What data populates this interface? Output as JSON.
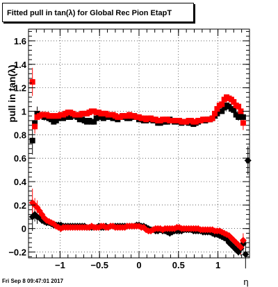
{
  "title": "Fitted pull in tan(λ) for Global Rec Pion EtapT",
  "date": "Fri Sep  8 09:47:01 2017",
  "colors": {
    "primary": "#000000",
    "secondary": "#ff0000"
  },
  "chart_data": {
    "type": "scatter",
    "title": "Fitted pull in tan(λ) for Global Rec Pion EtapT",
    "xlabel": "η",
    "ylabel": "pull in tan(λ)",
    "xlim": [
      -1.4,
      1.4
    ],
    "ylim": [
      -0.25,
      1.7
    ],
    "x_ticks": [
      -1,
      -0.5,
      0,
      0.5,
      1
    ],
    "x_tick_labels": [
      "−1",
      "−0.5",
      "0",
      "0.5",
      "1"
    ],
    "y_ticks": [
      -0.2,
      0,
      0.2,
      0.4,
      0.6,
      0.8,
      1,
      1.2,
      1.4,
      1.6
    ],
    "y_tick_labels": [
      "−0.2",
      "0",
      "0.2",
      "0.4",
      "0.6",
      "0.8",
      "1",
      "1.2",
      "1.4",
      "1.6"
    ],
    "grid": true,
    "series": [
      {
        "color": "#000000",
        "marker": "square",
        "x": [
          -1.35,
          -1.32,
          -1.29,
          -1.26,
          -1.23,
          -1.2,
          -1.17,
          -1.14,
          -1.11,
          -1.08,
          -1.05,
          -1.02,
          -0.99,
          -0.96,
          -0.93,
          -0.9,
          -0.87,
          -0.84,
          -0.81,
          -0.78,
          -0.75,
          -0.72,
          -0.69,
          -0.66,
          -0.63,
          -0.6,
          -0.57,
          -0.54,
          -0.51,
          -0.48,
          -0.45,
          -0.42,
          -0.39,
          -0.36,
          -0.33,
          -0.3,
          -0.27,
          -0.24,
          -0.21,
          -0.18,
          -0.15,
          -0.12,
          -0.09,
          -0.06,
          -0.03,
          0.0,
          0.03,
          0.06,
          0.09,
          0.12,
          0.15,
          0.18,
          0.21,
          0.24,
          0.27,
          0.3,
          0.33,
          0.36,
          0.39,
          0.42,
          0.45,
          0.48,
          0.51,
          0.54,
          0.57,
          0.6,
          0.63,
          0.66,
          0.69,
          0.72,
          0.75,
          0.78,
          0.81,
          0.84,
          0.87,
          0.9,
          0.93,
          0.96,
          0.99,
          1.02,
          1.05,
          1.08,
          1.11,
          1.14,
          1.17,
          1.2,
          1.23,
          1.26,
          1.29,
          1.32
        ],
        "y": [
          0.75,
          0.9,
          0.98,
          0.97,
          0.96,
          0.95,
          0.96,
          0.94,
          0.93,
          0.91,
          0.92,
          0.94,
          0.95,
          0.94,
          0.95,
          0.96,
          0.95,
          0.97,
          0.96,
          0.95,
          0.93,
          0.93,
          0.92,
          0.91,
          0.92,
          0.91,
          0.91,
          0.94,
          0.95,
          0.96,
          0.94,
          0.95,
          0.96,
          0.95,
          0.94,
          0.94,
          0.93,
          0.95,
          0.96,
          0.95,
          0.94,
          0.94,
          0.95,
          0.96,
          0.95,
          0.93,
          0.93,
          0.92,
          0.92,
          0.93,
          0.93,
          0.92,
          0.92,
          0.9,
          0.9,
          0.91,
          0.91,
          0.91,
          0.93,
          0.92,
          0.91,
          0.92,
          0.91,
          0.9,
          0.91,
          0.91,
          0.9,
          0.9,
          0.89,
          0.9,
          0.91,
          0.92,
          0.92,
          0.92,
          0.93,
          0.93,
          0.94,
          0.96,
          0.98,
          1.0,
          1.0,
          1.03,
          1.05,
          1.04,
          1.02,
          1.01,
          0.97,
          0.95,
          0.96,
          0.95
        ]
      },
      {
        "color": "#000000",
        "marker": "diamond",
        "x": [
          -1.35,
          -1.32,
          -1.29,
          -1.26,
          -1.23,
          -1.2,
          -1.17,
          -1.14,
          -1.11,
          -1.08,
          -1.05,
          -1.02,
          -0.99,
          -0.96,
          -0.93,
          -0.9,
          -0.87,
          -0.84,
          -0.81,
          -0.78,
          -0.75,
          -0.72,
          -0.69,
          -0.66,
          -0.63,
          -0.6,
          -0.57,
          -0.54,
          -0.51,
          -0.48,
          -0.45,
          -0.42,
          -0.39,
          -0.36,
          -0.33,
          -0.3,
          -0.27,
          -0.24,
          -0.21,
          -0.18,
          -0.15,
          -0.12,
          -0.09,
          -0.06,
          -0.03,
          0.0,
          0.03,
          0.06,
          0.09,
          0.12,
          0.15,
          0.18,
          0.21,
          0.24,
          0.27,
          0.3,
          0.33,
          0.36,
          0.39,
          0.42,
          0.45,
          0.48,
          0.51,
          0.54,
          0.57,
          0.6,
          0.63,
          0.66,
          0.69,
          0.72,
          0.75,
          0.78,
          0.81,
          0.84,
          0.87,
          0.9,
          0.93,
          0.96,
          0.99,
          1.02,
          1.05,
          1.08,
          1.11,
          1.14,
          1.17,
          1.2,
          1.23,
          1.26,
          1.29,
          1.32,
          1.35,
          1.38
        ],
        "y": [
          0.1,
          0.12,
          0.1,
          0.09,
          0.07,
          0.06,
          0.05,
          0.05,
          0.04,
          0.03,
          0.03,
          0.03,
          0.03,
          0.02,
          0.02,
          0.02,
          0.02,
          0.02,
          0.02,
          0.02,
          0.02,
          0.02,
          0.02,
          0.01,
          0.01,
          0.01,
          0.01,
          0.01,
          0.02,
          0.01,
          0.01,
          0.02,
          0.01,
          0.02,
          0.02,
          0.02,
          0.02,
          0.02,
          0.02,
          0.02,
          0.02,
          0.02,
          0.02,
          0.02,
          0.03,
          0.03,
          0.02,
          0.02,
          0.01,
          0.0,
          -0.01,
          -0.01,
          -0.02,
          -0.02,
          -0.01,
          -0.02,
          -0.02,
          -0.03,
          -0.04,
          -0.03,
          -0.02,
          -0.02,
          -0.02,
          -0.02,
          -0.01,
          -0.01,
          -0.01,
          -0.01,
          -0.02,
          -0.02,
          -0.02,
          -0.02,
          -0.03,
          -0.03,
          -0.03,
          -0.03,
          -0.04,
          -0.05,
          -0.05,
          -0.06,
          -0.07,
          -0.08,
          -0.09,
          -0.12,
          -0.14,
          -0.16,
          -0.18,
          -0.2,
          -0.17,
          -0.13,
          -0.22,
          0.58
        ]
      },
      {
        "color": "#ff0000",
        "marker": "square",
        "x": [
          -1.35,
          -1.32,
          -1.29,
          -1.26,
          -1.23,
          -1.2,
          -1.17,
          -1.14,
          -1.11,
          -1.08,
          -1.05,
          -1.02,
          -0.99,
          -0.96,
          -0.93,
          -0.9,
          -0.87,
          -0.84,
          -0.81,
          -0.78,
          -0.75,
          -0.72,
          -0.69,
          -0.66,
          -0.63,
          -0.6,
          -0.57,
          -0.54,
          -0.51,
          -0.48,
          -0.45,
          -0.42,
          -0.39,
          -0.36,
          -0.33,
          -0.3,
          -0.27,
          -0.24,
          -0.21,
          -0.18,
          -0.15,
          -0.12,
          -0.09,
          -0.06,
          -0.03,
          0.0,
          0.03,
          0.06,
          0.09,
          0.12,
          0.15,
          0.18,
          0.21,
          0.24,
          0.27,
          0.3,
          0.33,
          0.36,
          0.39,
          0.42,
          0.45,
          0.48,
          0.51,
          0.54,
          0.57,
          0.6,
          0.63,
          0.66,
          0.69,
          0.72,
          0.75,
          0.78,
          0.81,
          0.84,
          0.87,
          0.9,
          0.93,
          0.96,
          0.99,
          1.02,
          1.05,
          1.08,
          1.11,
          1.14,
          1.17,
          1.2,
          1.23,
          1.26,
          1.29,
          1.32
        ],
        "y": [
          1.25,
          0.87,
          0.95,
          0.96,
          0.97,
          0.97,
          0.97,
          0.96,
          0.96,
          0.96,
          0.96,
          0.96,
          0.97,
          0.97,
          0.98,
          0.99,
          0.99,
          0.98,
          0.97,
          0.97,
          0.97,
          0.98,
          0.98,
          0.98,
          0.99,
          1.0,
          1.0,
          0.99,
          0.99,
          0.98,
          0.98,
          0.98,
          0.97,
          0.97,
          0.97,
          0.96,
          0.95,
          0.95,
          0.96,
          0.96,
          0.96,
          0.97,
          0.96,
          0.96,
          0.95,
          0.95,
          0.94,
          0.94,
          0.93,
          0.94,
          0.94,
          0.93,
          0.93,
          0.92,
          0.92,
          0.93,
          0.93,
          0.93,
          0.92,
          0.92,
          0.92,
          0.92,
          0.92,
          0.91,
          0.91,
          0.91,
          0.92,
          0.92,
          0.91,
          0.91,
          0.92,
          0.92,
          0.93,
          0.93,
          0.93,
          0.93,
          0.94,
          0.98,
          1.02,
          1.05,
          1.06,
          1.1,
          1.12,
          1.11,
          1.1,
          1.08,
          1.05,
          1.04,
          1.0,
          0.9
        ]
      },
      {
        "color": "#ff0000",
        "marker": "diamond",
        "x": [
          -1.35,
          -1.32,
          -1.29,
          -1.26,
          -1.23,
          -1.2,
          -1.17,
          -1.14,
          -1.11,
          -1.08,
          -1.05,
          -1.02,
          -0.99,
          -0.96,
          -0.93,
          -0.9,
          -0.87,
          -0.84,
          -0.81,
          -0.78,
          -0.75,
          -0.72,
          -0.69,
          -0.66,
          -0.63,
          -0.6,
          -0.57,
          -0.54,
          -0.51,
          -0.48,
          -0.45,
          -0.42,
          -0.39,
          -0.36,
          -0.33,
          -0.3,
          -0.27,
          -0.24,
          -0.21,
          -0.18,
          -0.15,
          -0.12,
          -0.09,
          -0.06,
          -0.03,
          0.0,
          0.03,
          0.06,
          0.09,
          0.12,
          0.15,
          0.18,
          0.21,
          0.24,
          0.27,
          0.3,
          0.33,
          0.36,
          0.39,
          0.42,
          0.45,
          0.48,
          0.51,
          0.54,
          0.57,
          0.6,
          0.63,
          0.66,
          0.69,
          0.72,
          0.75,
          0.78,
          0.81,
          0.84,
          0.87,
          0.9,
          0.93,
          0.96,
          0.99,
          1.02,
          1.05,
          1.08,
          1.11,
          1.14,
          1.17,
          1.2,
          1.23,
          1.26,
          1.29,
          1.32
        ],
        "y": [
          0.22,
          0.2,
          0.18,
          0.15,
          0.12,
          0.09,
          0.07,
          0.06,
          0.05,
          0.04,
          0.02,
          0.01,
          0.0,
          0.01,
          0.01,
          0.01,
          0.01,
          0.01,
          0.01,
          0.01,
          0.01,
          0.01,
          0.01,
          0.01,
          0.01,
          0.02,
          0.01,
          0.01,
          0.01,
          0.02,
          0.02,
          0.01,
          0.01,
          0.02,
          0.02,
          0.01,
          0.01,
          0.01,
          0.01,
          0.01,
          0.02,
          0.02,
          0.02,
          0.02,
          0.02,
          0.02,
          0.01,
          0.01,
          -0.01,
          -0.02,
          -0.02,
          -0.01,
          0.0,
          0.0,
          0.0,
          -0.01,
          0.0,
          0.0,
          0.0,
          0.0,
          0.0,
          0.01,
          0.01,
          0.0,
          0.0,
          0.0,
          0.0,
          0.0,
          0.0,
          0.0,
          0.0,
          -0.01,
          -0.01,
          -0.01,
          -0.01,
          -0.01,
          -0.01,
          -0.02,
          -0.02,
          -0.02,
          -0.03,
          -0.04,
          -0.05,
          -0.06,
          -0.08,
          -0.1,
          -0.12,
          -0.14,
          -0.16,
          -0.1
        ]
      }
    ]
  }
}
